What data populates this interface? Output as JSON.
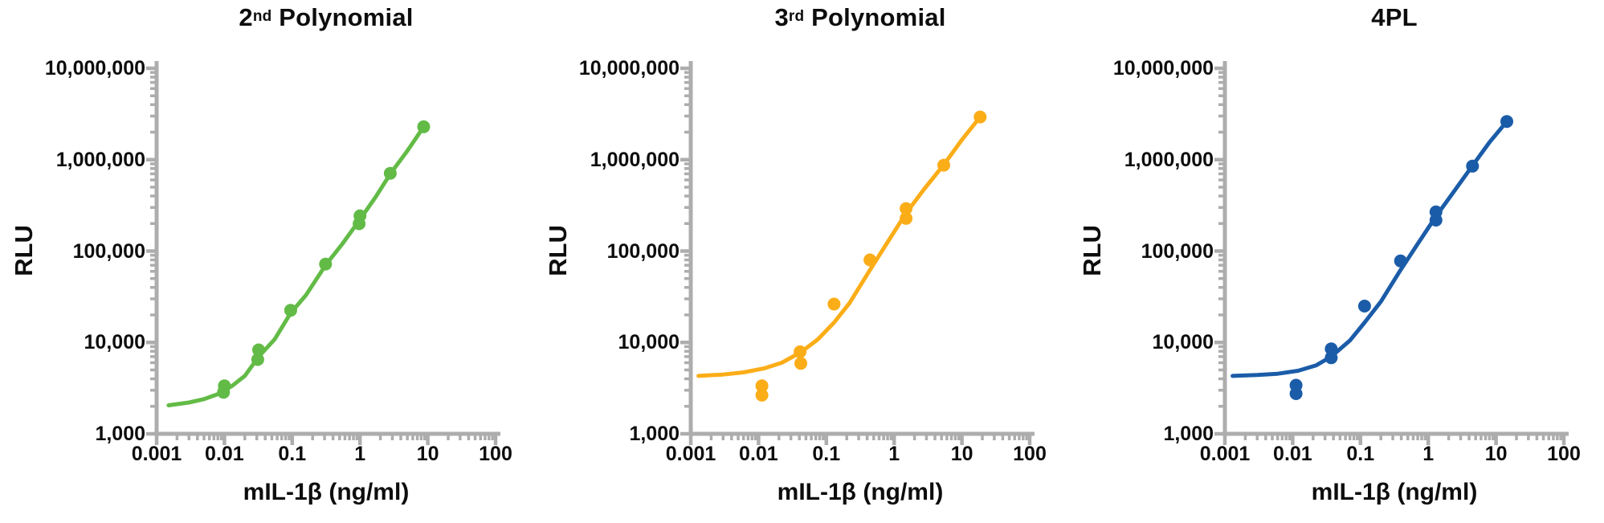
{
  "figure": {
    "background": "#ffffff",
    "axis_color": "#adadad",
    "text_color": "#0d0d0d"
  },
  "chart_data": [
    {
      "type": "scatter",
      "title_base": "2",
      "title_sup": "nd",
      "title_rest": " Polynomial",
      "title_plain": "2nd Polynomial",
      "series_color": "#62bb46",
      "xlabel": "mIL-1β (ng/ml)",
      "ylabel": "RLU",
      "x_scale": "log",
      "y_scale": "log",
      "xlim": [
        0.001,
        100
      ],
      "ylim": [
        1000,
        10000000
      ],
      "x_tick_labels": [
        "0.001",
        "0.01",
        "0.1",
        "1",
        "10",
        "100"
      ],
      "y_tick_labels": [
        "10,000,000",
        "1,000,000",
        "100,000",
        "10,000",
        "1,000"
      ],
      "points": [
        [
          0.0097,
          2850
        ],
        [
          0.01,
          3350
        ],
        [
          0.031,
          6500
        ],
        [
          0.032,
          8300
        ],
        [
          0.095,
          22500
        ],
        [
          0.31,
          72000
        ],
        [
          0.97,
          199000
        ],
        [
          1.0,
          243000
        ],
        [
          2.8,
          710000
        ],
        [
          8.7,
          2290000
        ]
      ],
      "fit_curve": [
        [
          0.0015,
          2050
        ],
        [
          0.003,
          2200
        ],
        [
          0.005,
          2400
        ],
        [
          0.008,
          2720
        ],
        [
          0.013,
          3350
        ],
        [
          0.02,
          4300
        ],
        [
          0.032,
          7000
        ],
        [
          0.055,
          10800
        ],
        [
          0.095,
          21000
        ],
        [
          0.16,
          33000
        ],
        [
          0.31,
          70000
        ],
        [
          0.55,
          120000
        ],
        [
          0.97,
          215000
        ],
        [
          1.7,
          390000
        ],
        [
          2.8,
          700000
        ],
        [
          5.0,
          1250000
        ],
        [
          8.7,
          2290000
        ]
      ]
    },
    {
      "type": "scatter",
      "title_base": "3",
      "title_sup": "rd",
      "title_rest": " Polynomial",
      "title_plain": "3rd Polynomial",
      "series_color": "#fbad18",
      "xlabel": "mIL-1β (ng/ml)",
      "ylabel": "RLU",
      "x_scale": "log",
      "y_scale": "log",
      "xlim": [
        0.001,
        100
      ],
      "ylim": [
        1000,
        10000000
      ],
      "x_tick_labels": [
        "0.001",
        "0.01",
        "0.1",
        "1",
        "10",
        "100"
      ],
      "y_tick_labels": [
        "10,000,000",
        "1,000,000",
        "100,000",
        "10,000",
        "1,000"
      ],
      "points": [
        [
          0.0112,
          2650
        ],
        [
          0.0112,
          3350
        ],
        [
          0.042,
          5900
        ],
        [
          0.041,
          7900
        ],
        [
          0.13,
          26300
        ],
        [
          0.44,
          80000
        ],
        [
          1.5,
          228000
        ],
        [
          1.5,
          292000
        ],
        [
          5.4,
          870000
        ],
        [
          18.6,
          2930000
        ]
      ],
      "fit_curve": [
        [
          0.0013,
          4300
        ],
        [
          0.003,
          4450
        ],
        [
          0.006,
          4700
        ],
        [
          0.012,
          5200
        ],
        [
          0.022,
          6000
        ],
        [
          0.042,
          7800
        ],
        [
          0.075,
          10800
        ],
        [
          0.13,
          16500
        ],
        [
          0.22,
          27000
        ],
        [
          0.44,
          62000
        ],
        [
          0.8,
          125000
        ],
        [
          1.5,
          260000
        ],
        [
          2.8,
          480000
        ],
        [
          5.4,
          880000
        ],
        [
          10.0,
          1650000
        ],
        [
          18.6,
          2930000
        ]
      ]
    },
    {
      "type": "scatter",
      "title_base": "4PL",
      "title_sup": "",
      "title_rest": "",
      "title_plain": "4PL",
      "series_color": "#1b5ca8",
      "xlabel": "mIL-1β (ng/ml)",
      "ylabel": "RLU",
      "x_scale": "log",
      "y_scale": "log",
      "xlim": [
        0.001,
        100
      ],
      "ylim": [
        1000,
        10000000
      ],
      "x_tick_labels": [
        "0.001",
        "0.01",
        "0.1",
        "1",
        "10",
        "100"
      ],
      "y_tick_labels": [
        "10,000,000",
        "1,000,000",
        "100,000",
        "10,000",
        "1,000"
      ],
      "points": [
        [
          0.0112,
          2750
        ],
        [
          0.0112,
          3400
        ],
        [
          0.037,
          6800
        ],
        [
          0.037,
          8500
        ],
        [
          0.115,
          25000
        ],
        [
          0.39,
          78000
        ],
        [
          1.3,
          218000
        ],
        [
          1.3,
          268000
        ],
        [
          4.5,
          850000
        ],
        [
          14.4,
          2620000
        ]
      ],
      "fit_curve": [
        [
          0.0013,
          4300
        ],
        [
          0.003,
          4400
        ],
        [
          0.006,
          4550
        ],
        [
          0.012,
          4900
        ],
        [
          0.022,
          5600
        ],
        [
          0.037,
          7000
        ],
        [
          0.07,
          10500
        ],
        [
          0.115,
          16500
        ],
        [
          0.2,
          28000
        ],
        [
          0.39,
          62000
        ],
        [
          0.7,
          120000
        ],
        [
          1.3,
          240000
        ],
        [
          2.4,
          450000
        ],
        [
          4.5,
          860000
        ],
        [
          8.0,
          1550000
        ],
        [
          14.4,
          2620000
        ]
      ]
    }
  ]
}
